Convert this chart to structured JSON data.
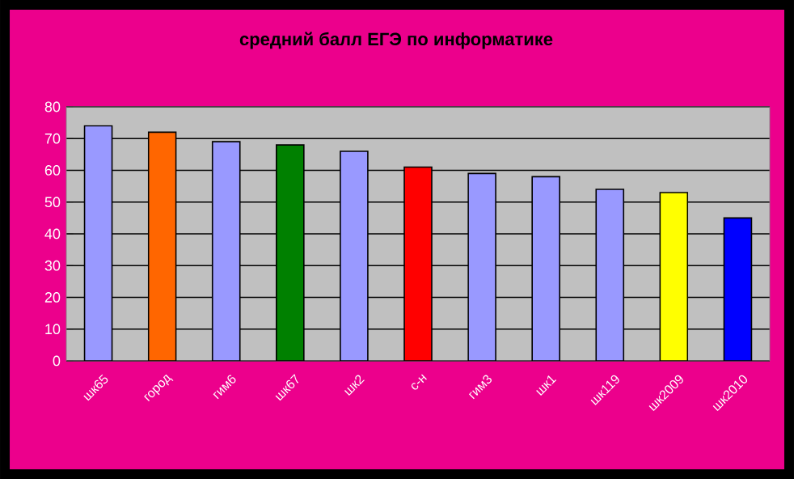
{
  "chart_data": {
    "type": "bar",
    "title": "средний балл ЕГЭ по информатике",
    "categories": [
      "шк65",
      "город",
      "гим6",
      "шк67",
      "шк2",
      "с-н",
      "гим3",
      "шк1",
      "шк119",
      "шк2009",
      "шк2010"
    ],
    "values": [
      74,
      72,
      69,
      68,
      66,
      61,
      59,
      58,
      54,
      53,
      45
    ],
    "colors": [
      "#9999ff",
      "#ff6600",
      "#9999ff",
      "#008000",
      "#9999ff",
      "#ff0000",
      "#9999ff",
      "#9999ff",
      "#9999ff",
      "#ffff00",
      "#0000ff"
    ],
    "ylim": [
      0,
      80
    ],
    "yticks": [
      0,
      10,
      20,
      30,
      40,
      50,
      60,
      70,
      80
    ],
    "grid": "y"
  }
}
